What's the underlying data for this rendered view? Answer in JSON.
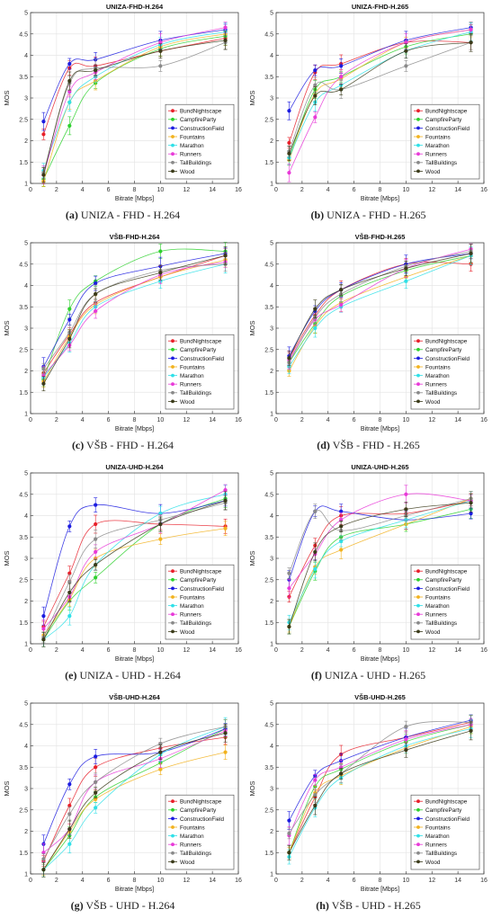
{
  "legend_labels": [
    "BundNightscape",
    "CampfireParty",
    "ConstructionField",
    "Fountains",
    "Marathon",
    "Runners",
    "TallBuildings",
    "Wood"
  ],
  "series_colors": [
    "#e8202a",
    "#2ed12e",
    "#1c1ce0",
    "#f2b21e",
    "#2fe0e8",
    "#e83ad8",
    "#8a8a8a",
    "#3b3b1a"
  ],
  "chart_data": [
    {
      "type": "line",
      "title": "UNIZA-FHD-H.264",
      "caption_tag": "(a)",
      "caption_text": "UNIZA - FHD - H.264",
      "xlabel": "Bitrate [Mbps]",
      "ylabel": "MOS",
      "xlim": [
        0,
        16
      ],
      "ylim": [
        1,
        5
      ],
      "xticks": [
        0,
        2,
        4,
        6,
        8,
        10,
        12,
        14,
        16
      ],
      "yticks": [
        1,
        1.5,
        2,
        2.5,
        3,
        3.5,
        4,
        4.5,
        5
      ],
      "legend_position": "lower-right",
      "grid": true,
      "x": [
        1,
        3,
        5,
        10,
        15
      ],
      "series": [
        {
          "name": "BundNightscape",
          "values": [
            2.15,
            3.7,
            3.75,
            4.1,
            4.4
          ]
        },
        {
          "name": "CampfireParty",
          "values": [
            1.1,
            2.35,
            3.35,
            4.15,
            4.45
          ]
        },
        {
          "name": "ConstructionField",
          "values": [
            2.45,
            3.8,
            3.9,
            4.35,
            4.6
          ]
        },
        {
          "name": "Fountains",
          "values": [
            1.05,
            2.9,
            3.4,
            4.2,
            4.5
          ]
        },
        {
          "name": "Marathon",
          "values": [
            1.3,
            2.9,
            3.5,
            4.25,
            4.55
          ]
        },
        {
          "name": "Runners",
          "values": [
            1.2,
            3.15,
            3.6,
            4.3,
            4.65
          ]
        },
        {
          "name": "TallBuildings",
          "values": [
            1.25,
            3.35,
            3.7,
            3.75,
            4.3
          ]
        },
        {
          "name": "Wood",
          "values": [
            1.2,
            3.4,
            3.65,
            4.1,
            4.35
          ]
        }
      ]
    },
    {
      "type": "line",
      "title": "UNIZA-FHD-H.265",
      "caption_tag": "(b)",
      "caption_text": "UNIZA - FHD - H.265",
      "xlabel": "Bitrate [Mbps]",
      "ylabel": "MOS",
      "xlim": [
        0,
        16
      ],
      "ylim": [
        1,
        5
      ],
      "xticks": [
        0,
        2,
        4,
        6,
        8,
        10,
        12,
        14,
        16
      ],
      "yticks": [
        1,
        1.5,
        2,
        2.5,
        3,
        3.5,
        4,
        4.5,
        5
      ],
      "legend_position": "lower-right",
      "grid": true,
      "x": [
        1,
        3,
        5,
        10,
        15
      ],
      "series": [
        {
          "name": "BundNightscape",
          "values": [
            1.95,
            3.6,
            3.8,
            4.3,
            4.3
          ]
        },
        {
          "name": "CampfireParty",
          "values": [
            1.6,
            3.2,
            3.5,
            4.2,
            4.5
          ]
        },
        {
          "name": "ConstructionField",
          "values": [
            2.7,
            3.65,
            3.75,
            4.35,
            4.65
          ]
        },
        {
          "name": "Fountains",
          "values": [
            1.55,
            3.1,
            3.45,
            4.3,
            4.6
          ]
        },
        {
          "name": "Marathon",
          "values": [
            1.6,
            2.9,
            3.3,
            4.1,
            4.55
          ]
        },
        {
          "name": "Runners",
          "values": [
            1.25,
            2.55,
            3.5,
            4.3,
            4.6
          ]
        },
        {
          "name": "TallBuildings",
          "values": [
            1.75,
            3.3,
            3.2,
            3.75,
            4.3
          ]
        },
        {
          "name": "Wood",
          "values": [
            1.7,
            3.05,
            3.2,
            4.1,
            4.3
          ]
        }
      ]
    },
    {
      "type": "line",
      "title": "VŠB-FHD-H.264",
      "caption_tag": "(c)",
      "caption_text": "VŠB - FHD - H.264",
      "xlabel": "Bitrate [Mbps]",
      "ylabel": "MOS",
      "xlim": [
        0,
        16
      ],
      "ylim": [
        1,
        5
      ],
      "xticks": [
        0,
        2,
        4,
        6,
        8,
        10,
        12,
        14,
        16
      ],
      "yticks": [
        1,
        1.5,
        2,
        2.5,
        3,
        3.5,
        4,
        4.5,
        5
      ],
      "legend_position": "lower-right",
      "grid": true,
      "x": [
        1,
        3,
        5,
        10,
        15
      ],
      "series": [
        {
          "name": "BundNightscape",
          "values": [
            1.95,
            2.85,
            3.6,
            4.2,
            4.7
          ]
        },
        {
          "name": "CampfireParty",
          "values": [
            1.8,
            3.45,
            4.1,
            4.8,
            4.8
          ]
        },
        {
          "name": "ConstructionField",
          "values": [
            2.1,
            3.2,
            4.05,
            4.45,
            4.75
          ]
        },
        {
          "name": "Fountains",
          "values": [
            1.75,
            2.8,
            3.55,
            4.2,
            4.6
          ]
        },
        {
          "name": "Marathon",
          "values": [
            1.85,
            2.65,
            3.5,
            4.1,
            4.5
          ]
        },
        {
          "name": "Runners",
          "values": [
            1.9,
            2.6,
            3.4,
            4.25,
            4.55
          ]
        },
        {
          "name": "TallBuildings",
          "values": [
            2.05,
            2.9,
            3.8,
            4.35,
            4.5
          ]
        },
        {
          "name": "Wood",
          "values": [
            1.7,
            2.75,
            3.8,
            4.3,
            4.7
          ]
        }
      ]
    },
    {
      "type": "line",
      "title": "VŠB-FHD-H.265",
      "caption_tag": "(d)",
      "caption_text": "VŠB - FHD - H.265",
      "xlabel": "Bitrate [Mbps]",
      "ylabel": "MOS",
      "xlim": [
        0,
        16
      ],
      "ylim": [
        1,
        5
      ],
      "xticks": [
        0,
        2,
        4,
        6,
        8,
        10,
        12,
        14,
        16
      ],
      "yticks": [
        1,
        1.5,
        2,
        2.5,
        3,
        3.5,
        4,
        4.5,
        5
      ],
      "legend_position": "lower-right",
      "grid": true,
      "x": [
        1,
        3,
        5,
        10,
        15
      ],
      "series": [
        {
          "name": "BundNightscape",
          "values": [
            2.3,
            3.3,
            3.9,
            4.5,
            4.5
          ]
        },
        {
          "name": "CampfireParty",
          "values": [
            2.2,
            3.1,
            3.75,
            4.35,
            4.7
          ]
        },
        {
          "name": "ConstructionField",
          "values": [
            2.35,
            3.4,
            3.9,
            4.5,
            4.75
          ]
        },
        {
          "name": "Fountains",
          "values": [
            2.0,
            3.05,
            3.6,
            4.2,
            4.7
          ]
        },
        {
          "name": "Marathon",
          "values": [
            2.1,
            3.0,
            3.5,
            4.1,
            4.7
          ]
        },
        {
          "name": "Runners",
          "values": [
            2.25,
            3.2,
            3.55,
            4.4,
            4.85
          ]
        },
        {
          "name": "TallBuildings",
          "values": [
            2.2,
            3.25,
            3.8,
            4.45,
            4.8
          ]
        },
        {
          "name": "Wood",
          "values": [
            2.3,
            3.45,
            3.9,
            4.4,
            4.75
          ]
        }
      ]
    },
    {
      "type": "line",
      "title": "UNIZA-UHD-H.264",
      "caption_tag": "(e)",
      "caption_text": "UNIZA - UHD - H.264",
      "xlabel": "Bitrate [Mbps]",
      "ylabel": "MOS",
      "xlim": [
        0,
        16
      ],
      "ylim": [
        1,
        5
      ],
      "xticks": [
        0,
        2,
        4,
        6,
        8,
        10,
        12,
        14,
        16
      ],
      "yticks": [
        1,
        1.5,
        2,
        2.5,
        3,
        3.5,
        4,
        4.5,
        5
      ],
      "legend_position": "lower-right",
      "grid": true,
      "x": [
        1,
        3,
        5,
        10,
        15
      ],
      "series": [
        {
          "name": "BundNightscape",
          "values": [
            1.4,
            2.65,
            3.8,
            3.8,
            3.75
          ]
        },
        {
          "name": "CampfireParty",
          "values": [
            1.1,
            2.0,
            2.55,
            3.8,
            4.4
          ]
        },
        {
          "name": "ConstructionField",
          "values": [
            1.65,
            3.75,
            4.25,
            4.05,
            4.35
          ]
        },
        {
          "name": "Fountains",
          "values": [
            1.2,
            2.05,
            3.0,
            3.45,
            3.7
          ]
        },
        {
          "name": "Marathon",
          "values": [
            1.1,
            1.65,
            2.85,
            4.05,
            4.5
          ]
        },
        {
          "name": "Runners",
          "values": [
            1.35,
            2.1,
            3.15,
            3.8,
            4.6
          ]
        },
        {
          "name": "TallBuildings",
          "values": [
            1.15,
            2.45,
            3.45,
            3.9,
            4.3
          ]
        },
        {
          "name": "Wood",
          "values": [
            1.1,
            2.2,
            2.85,
            3.8,
            4.35
          ]
        }
      ]
    },
    {
      "type": "line",
      "title": "UNIZA-UHD-H.265",
      "caption_tag": "(f)",
      "caption_text": "UNIZA - UHD - H.265",
      "xlabel": "Bitrate [Mbps]",
      "ylabel": "MOS",
      "xlim": [
        0,
        16
      ],
      "ylim": [
        1,
        5
      ],
      "xticks": [
        0,
        2,
        4,
        6,
        8,
        10,
        12,
        14,
        16
      ],
      "yticks": [
        1,
        1.5,
        2,
        2.5,
        3,
        3.5,
        4,
        4.5,
        5
      ],
      "legend_position": "lower-right",
      "grid": true,
      "x": [
        1,
        3,
        5,
        10,
        15
      ],
      "series": [
        {
          "name": "BundNightscape",
          "values": [
            2.1,
            3.3,
            4.0,
            4.05,
            4.35
          ]
        },
        {
          "name": "CampfireParty",
          "values": [
            1.4,
            2.7,
            3.5,
            3.8,
            4.15
          ]
        },
        {
          "name": "ConstructionField",
          "values": [
            2.5,
            4.1,
            4.1,
            3.9,
            4.05
          ]
        },
        {
          "name": "Fountains",
          "values": [
            1.4,
            2.8,
            3.2,
            3.8,
            4.4
          ]
        },
        {
          "name": "Marathon",
          "values": [
            1.5,
            2.75,
            3.4,
            3.9,
            4.35
          ]
        },
        {
          "name": "Runners",
          "values": [
            2.3,
            3.1,
            3.9,
            4.5,
            4.35
          ]
        },
        {
          "name": "TallBuildings",
          "values": [
            2.65,
            4.1,
            3.65,
            4.0,
            4.4
          ]
        },
        {
          "name": "Wood",
          "values": [
            1.4,
            3.15,
            3.75,
            4.15,
            4.3
          ]
        }
      ]
    },
    {
      "type": "line",
      "title": "VŠB-UHD-H.264",
      "caption_tag": "(g)",
      "caption_text": "VŠB - UHD - H.264",
      "xlabel": "Bitrate [Mbps]",
      "ylabel": "MOS",
      "xlim": [
        0,
        16
      ],
      "ylim": [
        1,
        5
      ],
      "xticks": [
        0,
        2,
        4,
        6,
        8,
        10,
        12,
        14,
        16
      ],
      "yticks": [
        1,
        1.5,
        2,
        2.5,
        3,
        3.5,
        4,
        4.5,
        5
      ],
      "legend_position": "lower-right",
      "grid": true,
      "x": [
        1,
        3,
        5,
        10,
        15
      ],
      "series": [
        {
          "name": "BundNightscape",
          "values": [
            1.3,
            2.6,
            3.5,
            3.95,
            4.2
          ]
        },
        {
          "name": "CampfireParty",
          "values": [
            1.1,
            1.9,
            2.8,
            3.6,
            4.4
          ]
        },
        {
          "name": "ConstructionField",
          "values": [
            1.7,
            3.1,
            3.75,
            3.85,
            4.4
          ]
        },
        {
          "name": "Fountains",
          "values": [
            1.1,
            2.0,
            2.75,
            3.45,
            3.85
          ]
        },
        {
          "name": "Marathon",
          "values": [
            1.1,
            1.7,
            2.55,
            3.8,
            4.45
          ]
        },
        {
          "name": "Runners",
          "values": [
            1.5,
            2.05,
            3.15,
            3.7,
            4.35
          ]
        },
        {
          "name": "TallBuildings",
          "values": [
            1.35,
            2.4,
            3.15,
            4.05,
            4.45
          ]
        },
        {
          "name": "Wood",
          "values": [
            1.1,
            2.05,
            2.9,
            3.85,
            4.3
          ]
        }
      ]
    },
    {
      "type": "line",
      "title": "VŠB-UHD-H.265",
      "caption_tag": "(h)",
      "caption_text": "VŠB - UHD - H.265",
      "xlabel": "Bitrate [Mbps]",
      "ylabel": "MOS",
      "xlim": [
        0,
        16
      ],
      "ylim": [
        1,
        5
      ],
      "xticks": [
        0,
        2,
        4,
        6,
        8,
        10,
        12,
        14,
        16
      ],
      "yticks": [
        1,
        1.5,
        2,
        2.5,
        3,
        3.5,
        4,
        4.5,
        5
      ],
      "legend_position": "lower-right",
      "grid": true,
      "x": [
        1,
        3,
        5,
        10,
        15
      ],
      "series": [
        {
          "name": "BundNightscape",
          "values": [
            1.5,
            2.8,
            3.8,
            4.2,
            4.55
          ]
        },
        {
          "name": "CampfireParty",
          "values": [
            1.5,
            3.05,
            3.45,
            4.1,
            4.5
          ]
        },
        {
          "name": "ConstructionField",
          "values": [
            2.25,
            3.3,
            3.65,
            4.2,
            4.6
          ]
        },
        {
          "name": "Fountains",
          "values": [
            1.5,
            2.9,
            3.3,
            3.95,
            4.45
          ]
        },
        {
          "name": "Marathon",
          "values": [
            1.4,
            2.55,
            3.25,
            4.0,
            4.4
          ]
        },
        {
          "name": "Runners",
          "values": [
            1.9,
            3.2,
            3.5,
            4.15,
            4.5
          ]
        },
        {
          "name": "TallBuildings",
          "values": [
            1.95,
            2.85,
            3.35,
            4.45,
            4.55
          ]
        },
        {
          "name": "Wood",
          "values": [
            1.5,
            2.6,
            3.35,
            3.9,
            4.35
          ]
        }
      ]
    }
  ]
}
